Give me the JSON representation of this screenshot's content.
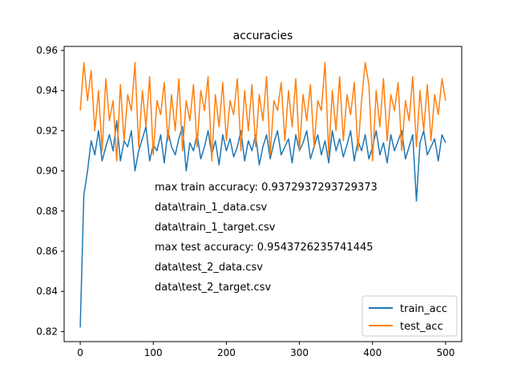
{
  "chart_data": {
    "type": "line",
    "title": "accuracies",
    "xlabel": "",
    "ylabel": "",
    "xlim": [
      -22,
      522
    ],
    "ylim": [
      0.815,
      0.962
    ],
    "xticks": [
      0,
      100,
      200,
      300,
      400,
      500
    ],
    "yticks": [
      0.82,
      0.84,
      0.86,
      0.88,
      0.9,
      0.92,
      0.94,
      0.96
    ],
    "xtick_labels": [
      "0",
      "100",
      "200",
      "300",
      "400",
      "500"
    ],
    "ytick_labels": [
      "0.82",
      "0.84",
      "0.86",
      "0.88",
      "0.90",
      "0.92",
      "0.94",
      "0.96"
    ],
    "grid": false,
    "legend_position": "lower-right",
    "series": [
      {
        "name": "train_acc",
        "color": "#1f77b4",
        "sample_every": 5,
        "values": [
          0.822,
          0.888,
          0.9,
          0.915,
          0.908,
          0.92,
          0.905,
          0.912,
          0.918,
          0.91,
          0.925,
          0.905,
          0.915,
          0.912,
          0.92,
          0.9,
          0.91,
          0.916,
          0.922,
          0.905,
          0.913,
          0.91,
          0.918,
          0.904,
          0.92,
          0.912,
          0.908,
          0.916,
          0.922,
          0.9,
          0.914,
          0.91,
          0.918,
          0.906,
          0.912,
          0.92,
          0.908,
          0.915,
          0.903,
          0.918,
          0.91,
          0.916,
          0.907,
          0.912,
          0.92,
          0.905,
          0.915,
          0.91,
          0.918,
          0.903,
          0.912,
          0.918,
          0.906,
          0.914,
          0.92,
          0.908,
          0.912,
          0.916,
          0.904,
          0.918,
          0.91,
          0.914,
          0.92,
          0.906,
          0.912,
          0.918,
          0.908,
          0.915,
          0.904,
          0.92,
          0.91,
          0.916,
          0.907,
          0.913,
          0.92,
          0.905,
          0.915,
          0.91,
          0.918,
          0.906,
          0.912,
          0.92,
          0.908,
          0.914,
          0.904,
          0.918,
          0.91,
          0.915,
          0.92,
          0.906,
          0.912,
          0.918,
          0.885,
          0.914,
          0.92,
          0.908,
          0.912,
          0.916,
          0.905,
          0.918,
          0.914
        ]
      },
      {
        "name": "test_acc",
        "color": "#ff7f0e",
        "sample_every": 5,
        "values": [
          0.93,
          0.954,
          0.935,
          0.95,
          0.92,
          0.94,
          0.91,
          0.946,
          0.925,
          0.935,
          0.905,
          0.943,
          0.915,
          0.938,
          0.93,
          0.954,
          0.912,
          0.94,
          0.922,
          0.947,
          0.908,
          0.935,
          0.928,
          0.944,
          0.915,
          0.938,
          0.92,
          0.946,
          0.91,
          0.935,
          0.925,
          0.943,
          0.912,
          0.94,
          0.93,
          0.947,
          0.905,
          0.938,
          0.922,
          0.944,
          0.915,
          0.935,
          0.928,
          0.946,
          0.91,
          0.94,
          0.92,
          0.943,
          0.912,
          0.938,
          0.925,
          0.947,
          0.908,
          0.935,
          0.93,
          0.944,
          0.915,
          0.94,
          0.922,
          0.946,
          0.91,
          0.938,
          0.925,
          0.943,
          0.912,
          0.935,
          0.93,
          0.954,
          0.908,
          0.94,
          0.92,
          0.947,
          0.915,
          0.938,
          0.928,
          0.944,
          0.91,
          0.935,
          0.954,
          0.943,
          0.905,
          0.94,
          0.922,
          0.946,
          0.915,
          0.938,
          0.93,
          0.944,
          0.91,
          0.935,
          0.925,
          0.947,
          0.912,
          0.94,
          0.92,
          0.943,
          0.915,
          0.938,
          0.928,
          0.946,
          0.935
        ]
      }
    ],
    "annotations": [
      "max train accuracy: 0.9372937293729373",
      "data\\train_1_data.csv",
      "data\\train_1_target.csv",
      "max test accuracy: 0.9543726235741445",
      "data\\test_2_data.csv",
      "data\\test_2_target.csv"
    ]
  }
}
